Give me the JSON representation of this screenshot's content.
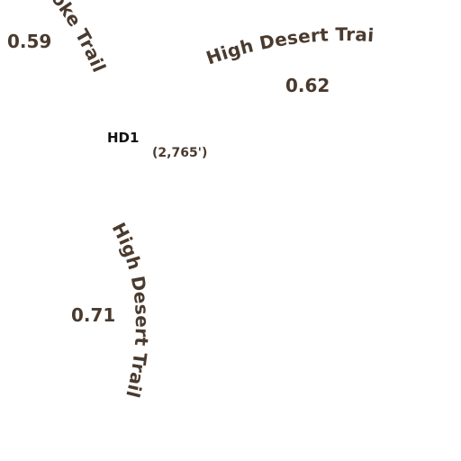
{
  "colors": {
    "trail_label": "#4a3a2e",
    "waypoint": "#111111",
    "background": "#ffffff"
  },
  "trail_labels": {
    "spoke_trail": "Spoke Trail",
    "high_desert_trail_top": "High Desert Trail",
    "high_desert_trail_lower": "High Desert Trail"
  },
  "distances": {
    "left_top": "0.59",
    "top_right": "0.62",
    "lower_left": "0.71"
  },
  "waypoint": {
    "id": "HD1",
    "elevation": "(2,765')"
  }
}
